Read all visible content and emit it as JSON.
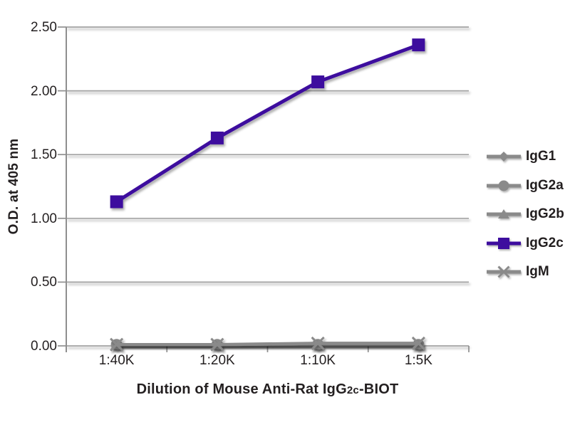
{
  "chart_data": {
    "type": "line",
    "categories": [
      "1:40K",
      "1:20K",
      "1:10K",
      "1:5K"
    ],
    "series": [
      {
        "name": "IgG1",
        "marker": "diamond",
        "color": "#8a8a8a",
        "values": [
          0.01,
          0.01,
          0.01,
          0.01
        ]
      },
      {
        "name": "IgG2a",
        "marker": "circle",
        "color": "#8a8a8a",
        "values": [
          0.01,
          0.01,
          0.01,
          0.01
        ]
      },
      {
        "name": "IgG2b",
        "marker": "triangle",
        "color": "#8a8a8a",
        "values": [
          0.01,
          0.01,
          0.01,
          0.01
        ]
      },
      {
        "name": "IgG2c",
        "marker": "square",
        "color": "#3e0d9e",
        "values": [
          1.13,
          1.63,
          2.07,
          2.36
        ]
      },
      {
        "name": "IgM",
        "marker": "x",
        "color": "#8a8a8a",
        "values": [
          0.01,
          0.01,
          0.02,
          0.02
        ]
      }
    ],
    "ylabel": "O.D. at 405 nm",
    "xlabel": "Dilution of Mouse Anti-Rat IgG2c-BIOT",
    "xlabel_parts": [
      "Dilution of Mouse Anti-Rat IgG",
      "2c",
      "-BIOT"
    ],
    "ylim": [
      0,
      2.5
    ],
    "yticks": [
      "0.00",
      "0.50",
      "1.00",
      "1.50",
      "2.00",
      "2.50"
    ],
    "grid": true,
    "legend_position": "right",
    "colors": {
      "grid": "#a3a3a3",
      "axis": "#8f8f8f",
      "text": "#231f20",
      "background": "#ffffff"
    }
  }
}
